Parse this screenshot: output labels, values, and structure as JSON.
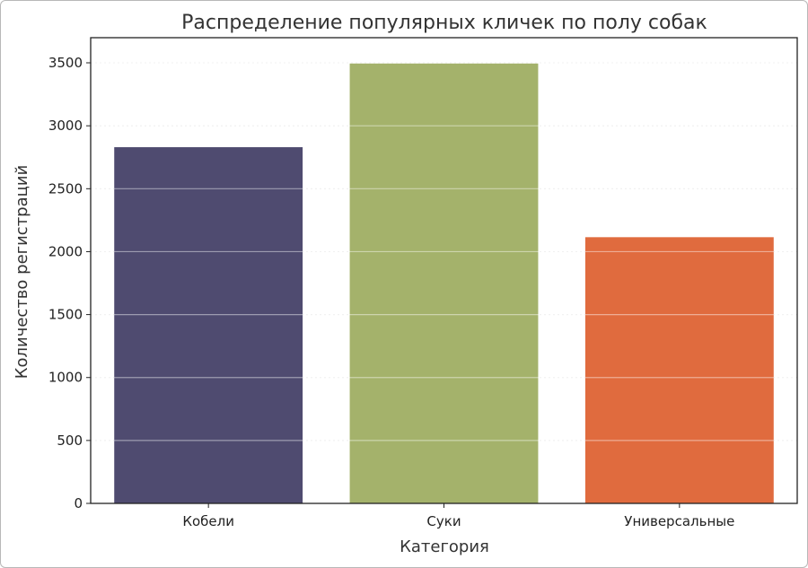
{
  "chart_data": {
    "type": "bar",
    "title": "Распределение популярных кличек по полу собак",
    "xlabel": "Категория",
    "ylabel": "Количество регистраций",
    "categories": [
      "Кобели",
      "Суки",
      "Универсальные"
    ],
    "values": [
      2830,
      3495,
      2115
    ],
    "colors": [
      "#4f4b70",
      "#a4b26b",
      "#e06b3e"
    ],
    "ylim": [
      0,
      3700
    ],
    "yticks": [
      0,
      500,
      1000,
      1500,
      2000,
      2500,
      3000,
      3500
    ],
    "grid": true,
    "legend": "none"
  }
}
